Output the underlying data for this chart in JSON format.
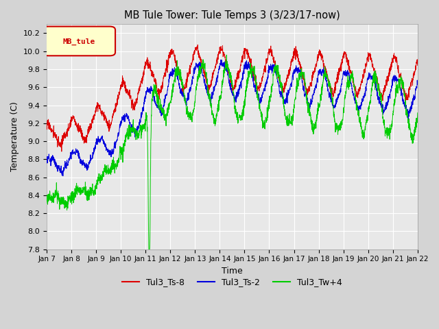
{
  "title": "MB Tule Tower: Tule Temps 3 (3/23/17-now)",
  "xlabel": "Time",
  "ylabel": "Temperature (C)",
  "ylim": [
    7.8,
    10.3
  ],
  "yticks": [
    7.8,
    8.0,
    8.2,
    8.4,
    8.6,
    8.8,
    9.0,
    9.2,
    9.4,
    9.6,
    9.8,
    10.0,
    10.2
  ],
  "xtick_labels": [
    "Jan 7",
    "Jan 8",
    "Jan 9",
    "Jan 10",
    "Jan 11",
    "Jan 12",
    "Jan 13",
    "Jan 14",
    "Jan 15",
    "Jan 16",
    "Jan 17",
    "Jan 18",
    "Jan 19",
    "Jan 20",
    "Jan 21",
    "Jan 22"
  ],
  "colors": {
    "red": "#dd0000",
    "blue": "#0000dd",
    "green": "#00cc00"
  },
  "legend_box_facecolor": "#ffffcc",
  "legend_box_edgecolor": "#cc0000",
  "legend_box_text": "MB_tule",
  "fig_facecolor": "#d4d4d4",
  "ax_facecolor": "#e8e8e8",
  "grid_color": "#ffffff"
}
